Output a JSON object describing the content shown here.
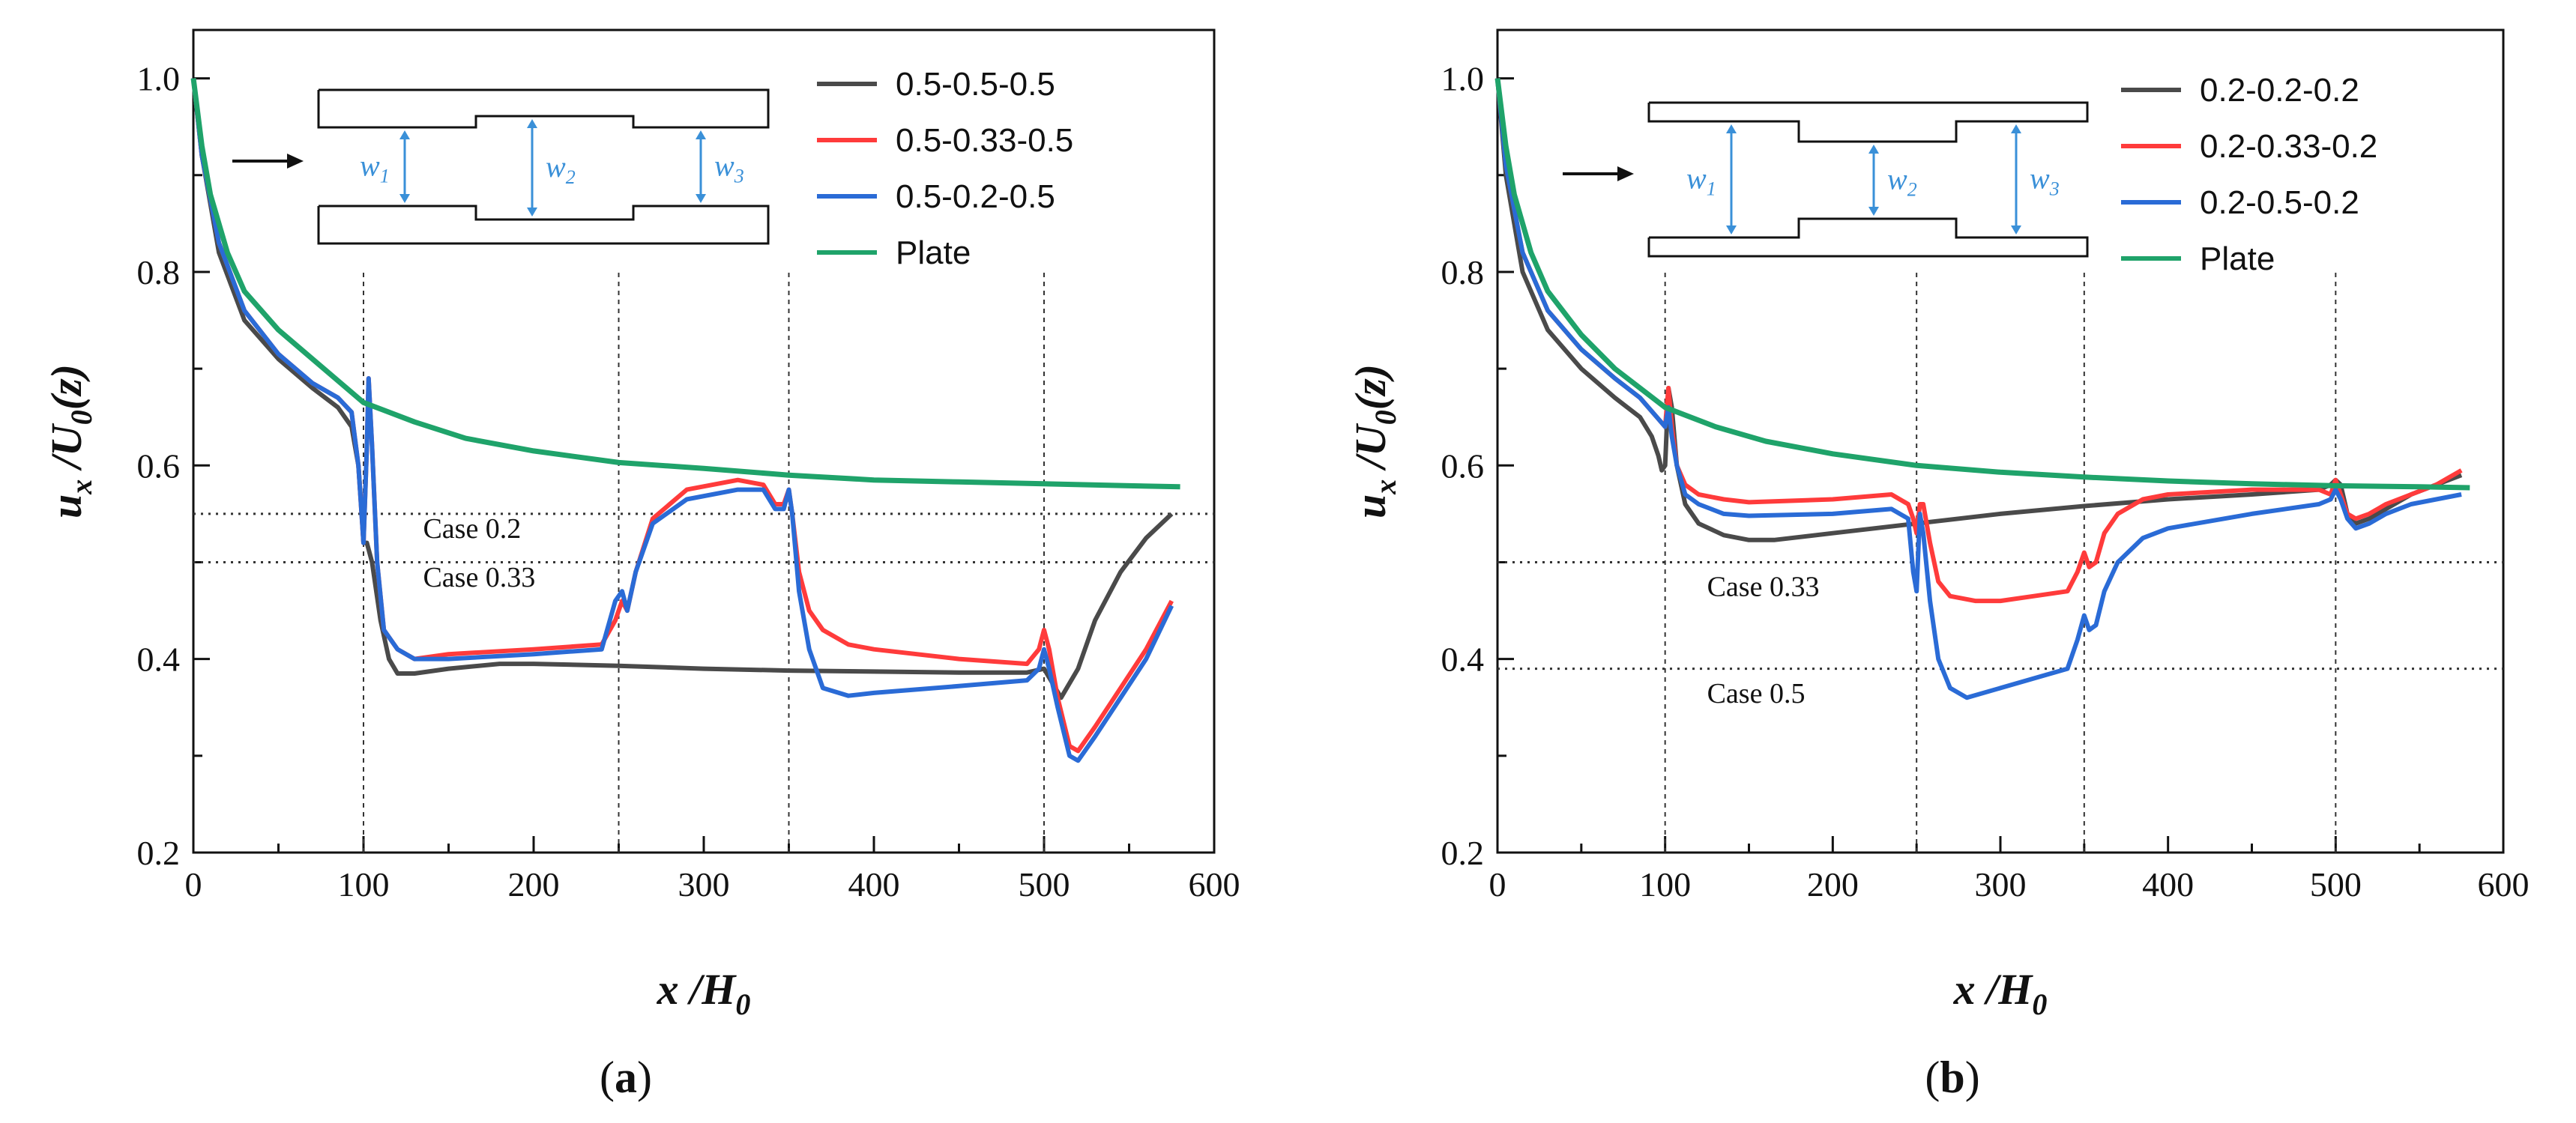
{
  "chart_data": [
    {
      "panel_label": "a",
      "type": "line",
      "xlabel": "x /H",
      "xlabel_sub": "0",
      "ylabel": "u",
      "ylabel_sub": "x",
      "ylabel_rest": " /U",
      "ylabel_rest_sub": "0",
      "ylabel_tail": "(z)",
      "xlim": [
        0,
        600
      ],
      "ylim": [
        0.2,
        1.05
      ],
      "xticks": [
        0,
        100,
        200,
        300,
        400,
        500,
        600
      ],
      "yticks": [
        0.2,
        0.4,
        0.6,
        0.8,
        1.0
      ],
      "xtick_labels": [
        "0",
        "100",
        "200",
        "300",
        "400",
        "500",
        "600"
      ],
      "ytick_labels": [
        "0.2",
        "0.4",
        "0.6",
        "0.8",
        "1.0"
      ],
      "vlines": [
        100,
        250,
        350,
        500
      ],
      "hlines": [
        {
          "y": 0.55,
          "label": "Case 0.2",
          "label_x": 135,
          "label_y": 0.525
        },
        {
          "y": 0.5,
          "label": "Case 0.33",
          "label_x": 135,
          "label_y": 0.475
        }
      ],
      "inset": {
        "w1": "w",
        "w1_sub": "1",
        "w2": "w",
        "w2_sub": "2",
        "w3": "w",
        "w3_sub": "3",
        "narrow_middle": true
      },
      "series": [
        {
          "name": "0.5-0.5-0.5",
          "color": "#4a4a4a",
          "x": [
            0,
            5,
            15,
            30,
            50,
            70,
            85,
            93,
            97,
            99,
            100,
            102,
            105,
            110,
            115,
            120,
            130,
            150,
            180,
            200,
            250,
            300,
            350,
            400,
            450,
            490,
            500,
            505,
            510,
            520,
            530,
            545,
            560,
            575
          ],
          "y": [
            1.0,
            0.92,
            0.82,
            0.75,
            0.71,
            0.68,
            0.66,
            0.64,
            0.6,
            0.55,
            0.52,
            0.52,
            0.5,
            0.44,
            0.4,
            0.385,
            0.385,
            0.39,
            0.395,
            0.395,
            0.393,
            0.39,
            0.388,
            0.387,
            0.386,
            0.386,
            0.39,
            0.375,
            0.36,
            0.39,
            0.44,
            0.49,
            0.525,
            0.55
          ]
        },
        {
          "name": "0.5-0.33-0.5",
          "color": "#ff3b3b",
          "x": [
            0,
            5,
            15,
            30,
            50,
            70,
            85,
            93,
            97,
            100,
            102,
            103,
            105,
            108,
            112,
            120,
            130,
            150,
            200,
            240,
            248,
            252,
            255,
            260,
            270,
            290,
            320,
            335,
            342,
            347,
            350,
            352,
            356,
            362,
            370,
            385,
            400,
            450,
            490,
            497,
            500,
            503,
            508,
            515,
            520,
            530,
            545,
            560,
            575
          ],
          "y": [
            1.0,
            0.92,
            0.83,
            0.76,
            0.715,
            0.685,
            0.67,
            0.655,
            0.6,
            0.52,
            0.62,
            0.69,
            0.62,
            0.5,
            0.43,
            0.41,
            0.4,
            0.405,
            0.41,
            0.415,
            0.44,
            0.46,
            0.45,
            0.49,
            0.545,
            0.575,
            0.585,
            0.58,
            0.56,
            0.56,
            0.575,
            0.55,
            0.49,
            0.45,
            0.43,
            0.415,
            0.41,
            0.4,
            0.395,
            0.41,
            0.43,
            0.41,
            0.36,
            0.31,
            0.305,
            0.33,
            0.37,
            0.41,
            0.46
          ]
        },
        {
          "name": "0.5-0.2-0.5",
          "color": "#2a6bd6",
          "x": [
            0,
            5,
            15,
            30,
            50,
            70,
            85,
            93,
            97,
            100,
            102,
            103,
            105,
            108,
            112,
            120,
            130,
            150,
            200,
            240,
            248,
            252,
            255,
            260,
            270,
            290,
            320,
            335,
            342,
            347,
            350,
            352,
            356,
            362,
            370,
            385,
            400,
            450,
            490,
            497,
            500,
            503,
            508,
            515,
            520,
            530,
            545,
            560,
            575
          ],
          "y": [
            1.0,
            0.92,
            0.83,
            0.76,
            0.715,
            0.685,
            0.67,
            0.655,
            0.6,
            0.52,
            0.62,
            0.69,
            0.62,
            0.5,
            0.43,
            0.41,
            0.4,
            0.4,
            0.405,
            0.41,
            0.46,
            0.47,
            0.45,
            0.49,
            0.54,
            0.565,
            0.575,
            0.575,
            0.555,
            0.555,
            0.575,
            0.55,
            0.47,
            0.41,
            0.37,
            0.362,
            0.365,
            0.372,
            0.378,
            0.39,
            0.41,
            0.39,
            0.35,
            0.3,
            0.295,
            0.32,
            0.36,
            0.4,
            0.455
          ]
        },
        {
          "name": "Plate",
          "color": "#1fa36a",
          "x": [
            0,
            5,
            10,
            20,
            30,
            50,
            70,
            100,
            130,
            160,
            200,
            250,
            300,
            350,
            400,
            450,
            500,
            550,
            580
          ],
          "y": [
            1.0,
            0.93,
            0.88,
            0.82,
            0.78,
            0.74,
            0.71,
            0.665,
            0.645,
            0.628,
            0.615,
            0.603,
            0.597,
            0.59,
            0.585,
            0.583,
            0.581,
            0.579,
            0.578
          ]
        }
      ]
    },
    {
      "panel_label": "b",
      "type": "line",
      "xlabel": "x /H",
      "xlabel_sub": "0",
      "ylabel": "u",
      "ylabel_sub": "x",
      "ylabel_rest": " /U",
      "ylabel_rest_sub": "0",
      "ylabel_tail": "(z)",
      "xlim": [
        0,
        600
      ],
      "ylim": [
        0.2,
        1.05
      ],
      "xticks": [
        0,
        100,
        200,
        300,
        400,
        500,
        600
      ],
      "yticks": [
        0.2,
        0.4,
        0.6,
        0.8,
        1.0
      ],
      "xtick_labels": [
        "0",
        "100",
        "200",
        "300",
        "400",
        "500",
        "600"
      ],
      "ytick_labels": [
        "0.2",
        "0.4",
        "0.6",
        "0.8",
        "1.0"
      ],
      "vlines": [
        100,
        250,
        350,
        500
      ],
      "hlines": [
        {
          "y": 0.5,
          "label": "Case 0.33",
          "label_x": 125,
          "label_y": 0.465
        },
        {
          "y": 0.39,
          "label": "Case 0.5",
          "label_x": 125,
          "label_y": 0.355
        }
      ],
      "inset": {
        "w1": "w",
        "w1_sub": "1",
        "w2": "w",
        "w2_sub": "2",
        "w3": "w",
        "w3_sub": "3",
        "narrow_middle": false
      },
      "series": [
        {
          "name": "0.2-0.2-0.2",
          "color": "#4a4a4a",
          "x": [
            0,
            5,
            15,
            30,
            50,
            70,
            85,
            92,
            96,
            98,
            100,
            102,
            104,
            107,
            112,
            120,
            135,
            150,
            165,
            200,
            250,
            300,
            350,
            400,
            450,
            490,
            497,
            500,
            503,
            507,
            512,
            520,
            530,
            545,
            560,
            575
          ],
          "y": [
            1.0,
            0.9,
            0.8,
            0.74,
            0.7,
            0.67,
            0.65,
            0.63,
            0.61,
            0.595,
            0.6,
            0.68,
            0.66,
            0.6,
            0.56,
            0.54,
            0.528,
            0.523,
            0.523,
            0.53,
            0.54,
            0.55,
            0.558,
            0.565,
            0.57,
            0.575,
            0.58,
            0.585,
            0.58,
            0.55,
            0.54,
            0.545,
            0.555,
            0.57,
            0.58,
            0.59
          ]
        },
        {
          "name": "0.2-0.33-0.2",
          "color": "#ff3b3b",
          "x": [
            0,
            5,
            15,
            30,
            50,
            70,
            85,
            95,
            100,
            102,
            104,
            107,
            112,
            120,
            135,
            150,
            200,
            235,
            245,
            248,
            250,
            252,
            254,
            258,
            263,
            270,
            285,
            300,
            320,
            340,
            346,
            350,
            353,
            357,
            362,
            370,
            385,
            400,
            450,
            490,
            497,
            500,
            503,
            507,
            512,
            520,
            530,
            545,
            560,
            575
          ],
          "y": [
            1.0,
            0.91,
            0.82,
            0.76,
            0.72,
            0.69,
            0.67,
            0.65,
            0.64,
            0.68,
            0.64,
            0.6,
            0.58,
            0.57,
            0.565,
            0.562,
            0.565,
            0.57,
            0.56,
            0.545,
            0.53,
            0.56,
            0.56,
            0.52,
            0.48,
            0.465,
            0.46,
            0.46,
            0.465,
            0.47,
            0.49,
            0.51,
            0.495,
            0.5,
            0.53,
            0.55,
            0.565,
            0.57,
            0.575,
            0.575,
            0.57,
            0.585,
            0.57,
            0.55,
            0.545,
            0.55,
            0.56,
            0.57,
            0.58,
            0.595
          ]
        },
        {
          "name": "0.2-0.5-0.2",
          "color": "#2a6bd6",
          "x": [
            0,
            5,
            15,
            30,
            50,
            70,
            85,
            95,
            100,
            102,
            104,
            107,
            112,
            120,
            135,
            150,
            200,
            235,
            245,
            248,
            250,
            252,
            254,
            258,
            263,
            270,
            280,
            300,
            320,
            340,
            346,
            350,
            353,
            357,
            362,
            370,
            385,
            400,
            450,
            490,
            497,
            500,
            503,
            507,
            512,
            520,
            530,
            545,
            560,
            575
          ],
          "y": [
            1.0,
            0.91,
            0.82,
            0.76,
            0.72,
            0.69,
            0.67,
            0.65,
            0.64,
            0.66,
            0.63,
            0.6,
            0.57,
            0.56,
            0.55,
            0.548,
            0.55,
            0.555,
            0.545,
            0.49,
            0.47,
            0.55,
            0.53,
            0.46,
            0.4,
            0.37,
            0.36,
            0.37,
            0.38,
            0.39,
            0.42,
            0.445,
            0.43,
            0.435,
            0.47,
            0.5,
            0.525,
            0.535,
            0.55,
            0.56,
            0.565,
            0.575,
            0.565,
            0.545,
            0.535,
            0.54,
            0.55,
            0.56,
            0.565,
            0.57
          ]
        },
        {
          "name": "Plate",
          "color": "#1fa36a",
          "x": [
            0,
            5,
            10,
            20,
            30,
            50,
            70,
            100,
            130,
            160,
            200,
            250,
            300,
            350,
            400,
            450,
            500,
            550,
            580
          ],
          "y": [
            1.0,
            0.93,
            0.88,
            0.82,
            0.78,
            0.735,
            0.7,
            0.66,
            0.64,
            0.625,
            0.612,
            0.6,
            0.593,
            0.588,
            0.584,
            0.581,
            0.579,
            0.578,
            0.577
          ]
        }
      ]
    }
  ]
}
